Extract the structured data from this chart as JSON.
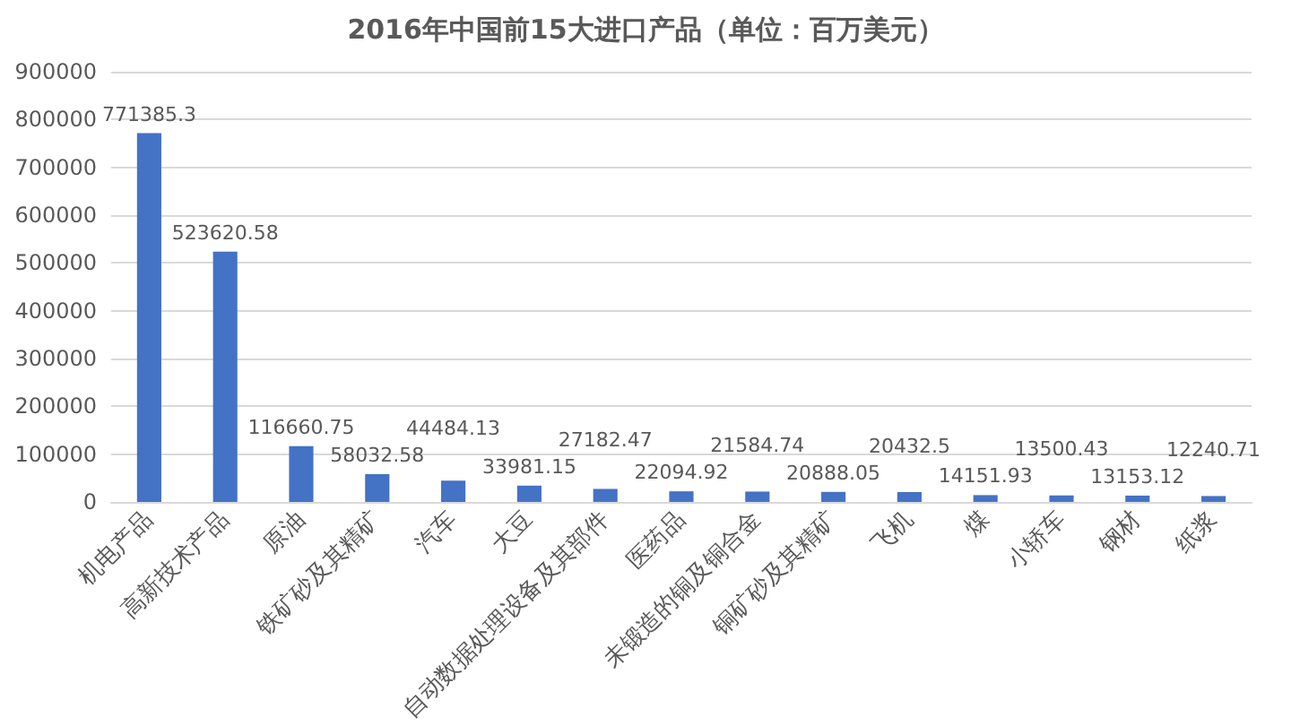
{
  "chart_data": {
    "type": "bar",
    "title": "2016年中国前15大进口产品（单位：百万美元）",
    "categories": [
      "机电产品",
      "高新技术产品",
      "原油",
      "铁矿砂及其精矿",
      "汽车",
      "大豆",
      "自动数据处理设备及其部件",
      "医药品",
      "未锻造的铜及铜合金",
      "铜矿砂及其精矿",
      "飞机",
      "煤",
      "小轿车",
      "钢材",
      "纸浆"
    ],
    "values": [
      771385.3,
      523620.58,
      116660.75,
      58032.58,
      44484.13,
      33981.15,
      27182.47,
      22094.92,
      21584.74,
      20888.05,
      20432.5,
      14151.93,
      13500.43,
      13153.12,
      12240.71
    ],
    "color": "#4472c4",
    "ylim": [
      0,
      900000
    ],
    "yticks": [
      0,
      100000,
      200000,
      300000,
      400000,
      500000,
      600000,
      700000,
      800000,
      900000
    ],
    "grid": "y",
    "data_labels": true
  }
}
